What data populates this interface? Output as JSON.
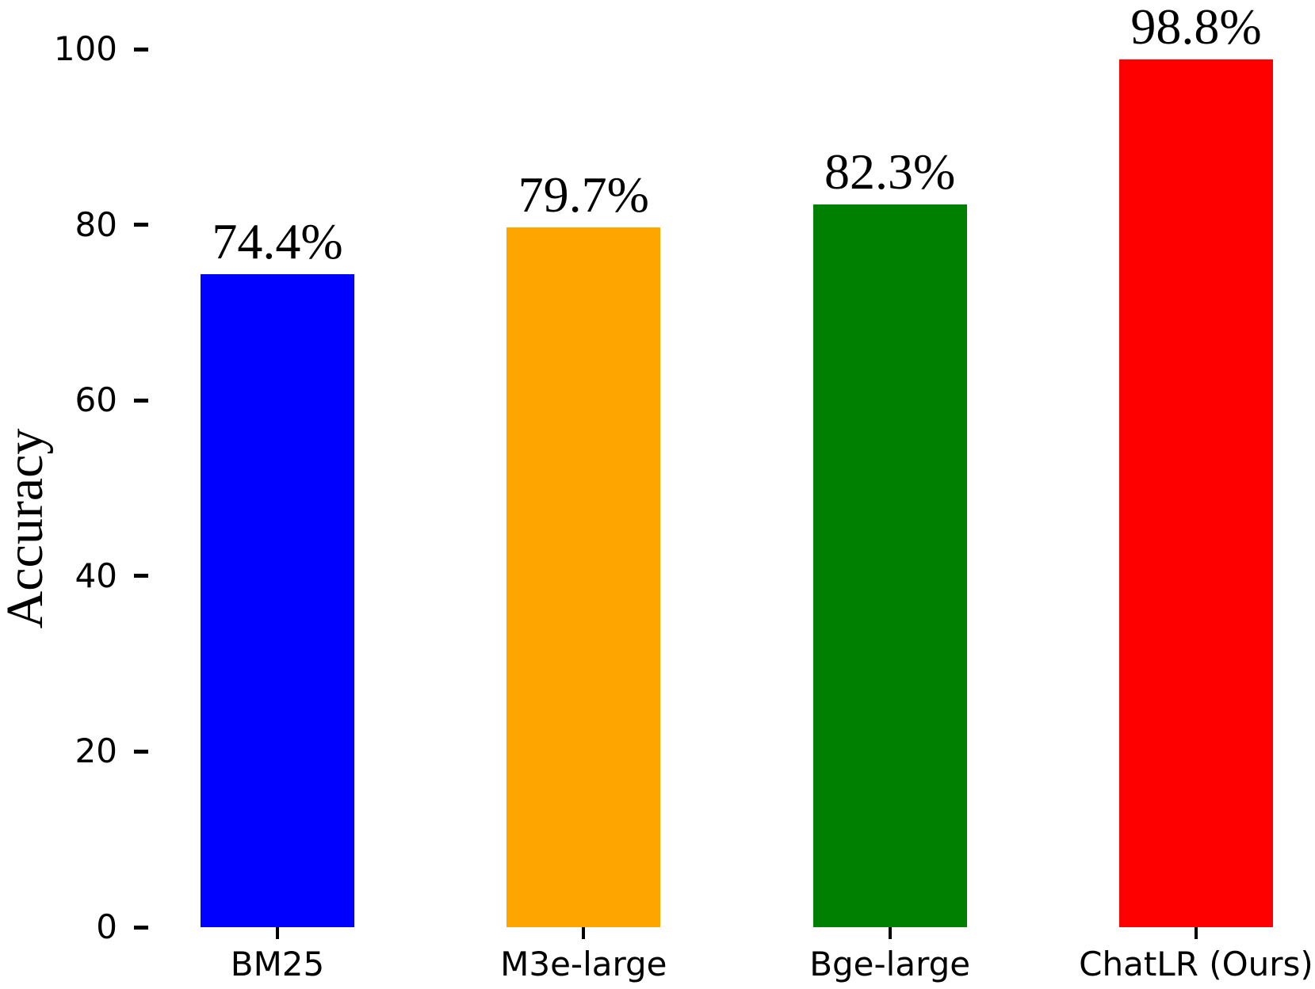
{
  "chart_data": {
    "type": "bar",
    "title": "",
    "xlabel": "",
    "ylabel": "Accuracy",
    "categories": [
      "BM25",
      "M3e-large",
      "Bge-large",
      "ChatLR (Ours)"
    ],
    "values": [
      74.4,
      79.7,
      82.3,
      98.8
    ],
    "value_labels": [
      "74.4%",
      "79.7%",
      "82.3%",
      "98.8%"
    ],
    "bar_colors": [
      "#0000ff",
      "#ffa500",
      "#008000",
      "#ff0000"
    ],
    "ylim": [
      0,
      100
    ],
    "yticks": [
      0,
      20,
      40,
      60,
      80,
      100
    ],
    "grid": false,
    "legend_position": "none",
    "background_color": "#ffffff",
    "text_color": "#000000"
  }
}
